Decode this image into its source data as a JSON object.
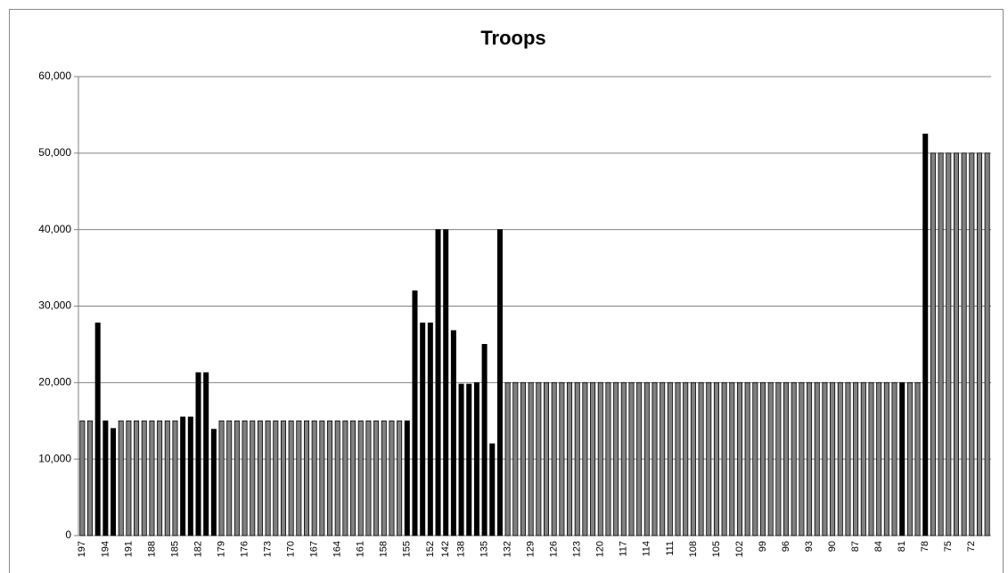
{
  "chart_data": {
    "type": "bar",
    "title": "Troops",
    "categories": [
      "197",
      null,
      null,
      "194",
      null,
      null,
      "191",
      null,
      null,
      "188",
      null,
      null,
      "185",
      null,
      null,
      "182",
      null,
      null,
      "179",
      null,
      null,
      "176",
      null,
      null,
      "173",
      null,
      null,
      "170",
      null,
      null,
      "167",
      null,
      null,
      "164",
      null,
      null,
      "161",
      null,
      null,
      "158",
      null,
      null,
      "155",
      null,
      null,
      "152",
      null,
      "142",
      null,
      "138",
      null,
      null,
      "135",
      null,
      null,
      "132",
      null,
      null,
      "129",
      null,
      null,
      "126",
      null,
      null,
      "123",
      null,
      null,
      "120",
      null,
      null,
      "117",
      null,
      null,
      "114",
      null,
      null,
      "111",
      null,
      null,
      "108",
      null,
      null,
      "105",
      null,
      null,
      "102",
      null,
      null,
      "99",
      null,
      null,
      "96",
      null,
      null,
      "93",
      null,
      null,
      "90",
      null,
      null,
      "87",
      null,
      null,
      "84",
      null,
      null,
      "81",
      null,
      null,
      "78",
      null,
      null,
      "75",
      null,
      null,
      "72",
      null,
      null
    ],
    "values": [
      15000,
      15000,
      27800,
      15000,
      14000,
      15000,
      15000,
      15000,
      15000,
      15000,
      15000,
      15000,
      15000,
      15500,
      15500,
      21300,
      21300,
      13900,
      15000,
      15000,
      15000,
      15000,
      15000,
      15000,
      15000,
      15000,
      15000,
      15000,
      15000,
      15000,
      15000,
      15000,
      15000,
      15000,
      15000,
      15000,
      15000,
      15000,
      15000,
      15000,
      15000,
      15000,
      15000,
      32000,
      27800,
      27800,
      40000,
      40000,
      26800,
      19800,
      19800,
      20000,
      25000,
      12000,
      40000,
      20000,
      20000,
      20000,
      20000,
      20000,
      20000,
      20000,
      20000,
      20000,
      20000,
      20000,
      20000,
      20000,
      20000,
      20000,
      20000,
      20000,
      20000,
      20000,
      20000,
      20000,
      20000,
      20000,
      20000,
      20000,
      20000,
      20000,
      20000,
      20000,
      20000,
      20000,
      20000,
      20000,
      20000,
      20000,
      20000,
      20000,
      20000,
      20000,
      20000,
      20000,
      20000,
      20000,
      20000,
      20000,
      20000,
      20000,
      20000,
      20000,
      20000,
      20000,
      20000,
      20000,
      20000,
      52500,
      50000,
      50000,
      50000,
      50000,
      50000,
      50000,
      50000,
      50000
    ],
    "colors": [
      "#808080",
      "#808080",
      "#000000",
      "#000000",
      "#000000",
      "#808080",
      "#808080",
      "#808080",
      "#808080",
      "#808080",
      "#808080",
      "#808080",
      "#808080",
      "#000000",
      "#000000",
      "#000000",
      "#000000",
      "#000000",
      "#808080",
      "#808080",
      "#808080",
      "#808080",
      "#808080",
      "#808080",
      "#808080",
      "#808080",
      "#808080",
      "#808080",
      "#808080",
      "#808080",
      "#808080",
      "#808080",
      "#808080",
      "#808080",
      "#808080",
      "#808080",
      "#808080",
      "#808080",
      "#808080",
      "#808080",
      "#808080",
      "#808080",
      "#000000",
      "#000000",
      "#000000",
      "#000000",
      "#000000",
      "#000000",
      "#000000",
      "#000000",
      "#000000",
      "#000000",
      "#000000",
      "#000000",
      "#000000",
      "#808080",
      "#808080",
      "#808080",
      "#808080",
      "#808080",
      "#808080",
      "#808080",
      "#808080",
      "#808080",
      "#808080",
      "#808080",
      "#808080",
      "#808080",
      "#808080",
      "#808080",
      "#808080",
      "#808080",
      "#808080",
      "#808080",
      "#808080",
      "#808080",
      "#808080",
      "#808080",
      "#808080",
      "#808080",
      "#808080",
      "#808080",
      "#808080",
      "#808080",
      "#808080",
      "#808080",
      "#808080",
      "#808080",
      "#808080",
      "#808080",
      "#808080",
      "#808080",
      "#808080",
      "#808080",
      "#808080",
      "#808080",
      "#808080",
      "#808080",
      "#808080",
      "#808080",
      "#808080",
      "#808080",
      "#808080",
      "#808080",
      "#808080",
      "#808080",
      "#000000",
      "#808080",
      "#808080",
      "#000000",
      "#808080",
      "#808080",
      "#808080",
      "#808080",
      "#808080",
      "#808080",
      "#808080",
      "#808080"
    ],
    "ylim": [
      0,
      60000
    ],
    "yticks": [
      0,
      {
        "value": 10000,
        "label": "10,000"
      },
      {
        "value": 20000,
        "label": "20,000"
      },
      {
        "value": 30000,
        "label": "30,000"
      },
      {
        "value": 40000,
        "label": "40,000"
      },
      {
        "value": 50000,
        "label": "50,000"
      },
      {
        "value": 60000,
        "label": "60,000"
      }
    ],
    "grid": true
  }
}
